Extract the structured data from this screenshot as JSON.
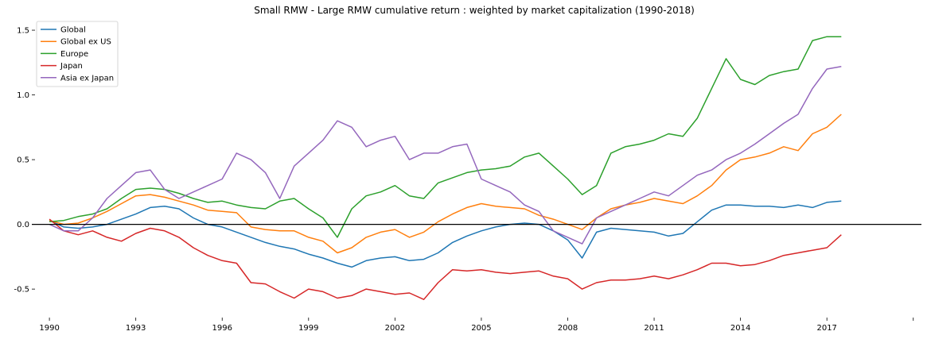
{
  "chart_data": {
    "type": "line",
    "title": "Small RMW - Large RMW cumulative return : weighted by market capitalization (1990-2018)",
    "xlabel": "",
    "ylabel": "",
    "xlim": [
      1989.5,
      2020.2
    ],
    "ylim": [
      -0.72,
      1.58
    ],
    "x_ticks": [
      1990,
      1993,
      1996,
      1999,
      2002,
      2005,
      2008,
      2011,
      2014,
      2017
    ],
    "x_tick_labels": [
      "1990",
      "1993",
      "1996",
      "1999",
      "2002",
      "2005",
      "2008",
      "2011",
      "2014",
      "2017"
    ],
    "y_ticks": [
      -0.5,
      0.0,
      0.5,
      1.0,
      1.5
    ],
    "y_tick_labels": [
      "-0.5",
      "0.0",
      "0.5",
      "1.0",
      "1.5"
    ],
    "reference_line": 0.0,
    "grid": false,
    "legend_position": "upper-left",
    "series": [
      {
        "name": "Global",
        "color": "#1f77b4",
        "x": [
          1990.0,
          1990.5,
          1991.0,
          1991.5,
          1992.0,
          1992.5,
          1993.0,
          1993.5,
          1994.0,
          1994.5,
          1995.0,
          1995.5,
          1996.0,
          1996.5,
          1997.0,
          1997.5,
          1998.0,
          1998.5,
          1999.0,
          1999.5,
          2000.0,
          2000.5,
          2001.0,
          2001.5,
          2002.0,
          2002.5,
          2003.0,
          2003.5,
          2004.0,
          2004.5,
          2005.0,
          2005.5,
          2006.0,
          2006.5,
          2007.0,
          2007.5,
          2008.0,
          2008.5,
          2009.0,
          2009.5,
          2010.0,
          2010.5,
          2011.0,
          2011.5,
          2012.0,
          2012.5,
          2013.0,
          2013.5,
          2014.0,
          2014.5,
          2015.0,
          2015.5,
          2016.0,
          2016.5,
          2017.0,
          2017.5
        ],
        "y": [
          0.03,
          -0.02,
          -0.03,
          -0.02,
          0.0,
          0.04,
          0.08,
          0.13,
          0.14,
          0.12,
          0.05,
          0.0,
          -0.02,
          -0.06,
          -0.1,
          -0.14,
          -0.17,
          -0.19,
          -0.23,
          -0.26,
          -0.3,
          -0.33,
          -0.28,
          -0.26,
          -0.25,
          -0.28,
          -0.27,
          -0.22,
          -0.14,
          -0.09,
          -0.05,
          -0.02,
          0.0,
          0.01,
          0.0,
          -0.05,
          -0.12,
          -0.26,
          -0.06,
          -0.03,
          -0.04,
          -0.05,
          -0.06,
          -0.09,
          -0.07,
          0.02,
          0.11,
          0.15,
          0.15,
          0.14,
          0.14,
          0.13,
          0.15,
          0.13,
          0.17,
          0.18
        ]
      },
      {
        "name": "Global ex US",
        "color": "#ff7f0e",
        "x": [
          1990.0,
          1990.5,
          1991.0,
          1991.5,
          1992.0,
          1992.5,
          1993.0,
          1993.5,
          1994.0,
          1994.5,
          1995.0,
          1995.5,
          1996.0,
          1996.5,
          1997.0,
          1997.5,
          1998.0,
          1998.5,
          1999.0,
          1999.5,
          2000.0,
          2000.5,
          2001.0,
          2001.5,
          2002.0,
          2002.5,
          2003.0,
          2003.5,
          2004.0,
          2004.5,
          2005.0,
          2005.5,
          2006.0,
          2006.5,
          2007.0,
          2007.5,
          2008.0,
          2008.5,
          2009.0,
          2009.5,
          2010.0,
          2010.5,
          2011.0,
          2011.5,
          2012.0,
          2012.5,
          2013.0,
          2013.5,
          2014.0,
          2014.5,
          2015.0,
          2015.5,
          2016.0,
          2016.5,
          2017.0,
          2017.5
        ],
        "y": [
          0.03,
          0.0,
          0.01,
          0.05,
          0.1,
          0.16,
          0.22,
          0.23,
          0.21,
          0.18,
          0.15,
          0.11,
          0.1,
          0.09,
          -0.02,
          -0.04,
          -0.05,
          -0.05,
          -0.1,
          -0.13,
          -0.22,
          -0.18,
          -0.1,
          -0.06,
          -0.04,
          -0.1,
          -0.06,
          0.02,
          0.08,
          0.13,
          0.16,
          0.14,
          0.13,
          0.12,
          0.07,
          0.04,
          0.0,
          -0.04,
          0.05,
          0.12,
          0.15,
          0.17,
          0.2,
          0.18,
          0.16,
          0.22,
          0.3,
          0.42,
          0.5,
          0.52,
          0.55,
          0.6,
          0.57,
          0.7,
          0.75,
          0.85
        ]
      },
      {
        "name": "Europe",
        "color": "#2ca02c",
        "x": [
          1990.0,
          1990.5,
          1991.0,
          1991.5,
          1992.0,
          1992.5,
          1993.0,
          1993.5,
          1994.0,
          1994.5,
          1995.0,
          1995.5,
          1996.0,
          1996.5,
          1997.0,
          1997.5,
          1998.0,
          1998.5,
          1999.0,
          1999.5,
          2000.0,
          2000.5,
          2001.0,
          2001.5,
          2002.0,
          2002.5,
          2003.0,
          2003.5,
          2004.0,
          2004.5,
          2005.0,
          2005.5,
          2006.0,
          2006.5,
          2007.0,
          2007.5,
          2008.0,
          2008.5,
          2009.0,
          2009.5,
          2010.0,
          2010.5,
          2011.0,
          2011.5,
          2012.0,
          2012.5,
          2013.0,
          2013.5,
          2014.0,
          2014.5,
          2015.0,
          2015.5,
          2016.0,
          2016.5,
          2017.0,
          2017.5
        ],
        "y": [
          0.02,
          0.03,
          0.06,
          0.08,
          0.12,
          0.2,
          0.27,
          0.28,
          0.27,
          0.24,
          0.2,
          0.17,
          0.18,
          0.15,
          0.13,
          0.12,
          0.18,
          0.2,
          0.12,
          0.05,
          -0.1,
          0.12,
          0.22,
          0.25,
          0.3,
          0.22,
          0.2,
          0.32,
          0.36,
          0.4,
          0.42,
          0.43,
          0.45,
          0.52,
          0.55,
          0.45,
          0.35,
          0.23,
          0.3,
          0.55,
          0.6,
          0.62,
          0.65,
          0.7,
          0.68,
          0.82,
          1.05,
          1.28,
          1.12,
          1.08,
          1.15,
          1.18,
          1.2,
          1.42,
          1.45,
          1.45
        ]
      },
      {
        "name": "Japan",
        "color": "#d62728",
        "x": [
          1990.0,
          1990.5,
          1991.0,
          1991.5,
          1992.0,
          1992.5,
          1993.0,
          1993.5,
          1994.0,
          1994.5,
          1995.0,
          1995.5,
          1996.0,
          1996.5,
          1997.0,
          1997.5,
          1998.0,
          1998.5,
          1999.0,
          1999.5,
          2000.0,
          2000.5,
          2001.0,
          2001.5,
          2002.0,
          2002.5,
          2003.0,
          2003.5,
          2004.0,
          2004.5,
          2005.0,
          2005.5,
          2006.0,
          2006.5,
          2007.0,
          2007.5,
          2008.0,
          2008.5,
          2009.0,
          2009.5,
          2010.0,
          2010.5,
          2011.0,
          2011.5,
          2012.0,
          2012.5,
          2013.0,
          2013.5,
          2014.0,
          2014.5,
          2015.0,
          2015.5,
          2016.0,
          2016.5,
          2017.0,
          2017.5
        ],
        "y": [
          0.04,
          -0.05,
          -0.08,
          -0.05,
          -0.1,
          -0.13,
          -0.07,
          -0.03,
          -0.05,
          -0.1,
          -0.18,
          -0.24,
          -0.28,
          -0.3,
          -0.45,
          -0.46,
          -0.52,
          -0.57,
          -0.5,
          -0.52,
          -0.57,
          -0.55,
          -0.5,
          -0.52,
          -0.54,
          -0.53,
          -0.58,
          -0.45,
          -0.35,
          -0.36,
          -0.35,
          -0.37,
          -0.38,
          -0.37,
          -0.36,
          -0.4,
          -0.42,
          -0.5,
          -0.45,
          -0.43,
          -0.43,
          -0.42,
          -0.4,
          -0.42,
          -0.39,
          -0.35,
          -0.3,
          -0.3,
          -0.32,
          -0.31,
          -0.28,
          -0.24,
          -0.22,
          -0.2,
          -0.18,
          -0.08
        ]
      },
      {
        "name": "Asia ex Japan",
        "color": "#9467bd",
        "x": [
          1990.0,
          1990.5,
          1991.0,
          1991.5,
          1992.0,
          1992.5,
          1993.0,
          1993.5,
          1994.0,
          1994.5,
          1995.0,
          1995.5,
          1996.0,
          1996.5,
          1997.0,
          1997.5,
          1998.0,
          1998.5,
          1999.0,
          1999.5,
          2000.0,
          2000.5,
          2001.0,
          2001.5,
          2002.0,
          2002.5,
          2003.0,
          2003.5,
          2004.0,
          2004.5,
          2005.0,
          2005.5,
          2006.0,
          2006.5,
          2007.0,
          2007.5,
          2008.0,
          2008.5,
          2009.0,
          2009.5,
          2010.0,
          2010.5,
          2011.0,
          2011.5,
          2012.0,
          2012.5,
          2013.0,
          2013.5,
          2014.0,
          2014.5,
          2015.0,
          2015.5,
          2016.0,
          2016.5,
          2017.0,
          2017.5
        ],
        "y": [
          0.0,
          -0.05,
          -0.05,
          0.05,
          0.2,
          0.3,
          0.4,
          0.42,
          0.27,
          0.2,
          0.25,
          0.3,
          0.35,
          0.55,
          0.5,
          0.4,
          0.2,
          0.45,
          0.55,
          0.65,
          0.8,
          0.75,
          0.6,
          0.65,
          0.68,
          0.5,
          0.55,
          0.55,
          0.6,
          0.62,
          0.35,
          0.3,
          0.25,
          0.15,
          0.1,
          -0.05,
          -0.1,
          -0.15,
          0.05,
          0.1,
          0.15,
          0.2,
          0.25,
          0.22,
          0.3,
          0.38,
          0.42,
          0.5,
          0.55,
          0.62,
          0.7,
          0.78,
          0.85,
          1.05,
          1.2,
          1.22
        ]
      }
    ]
  }
}
